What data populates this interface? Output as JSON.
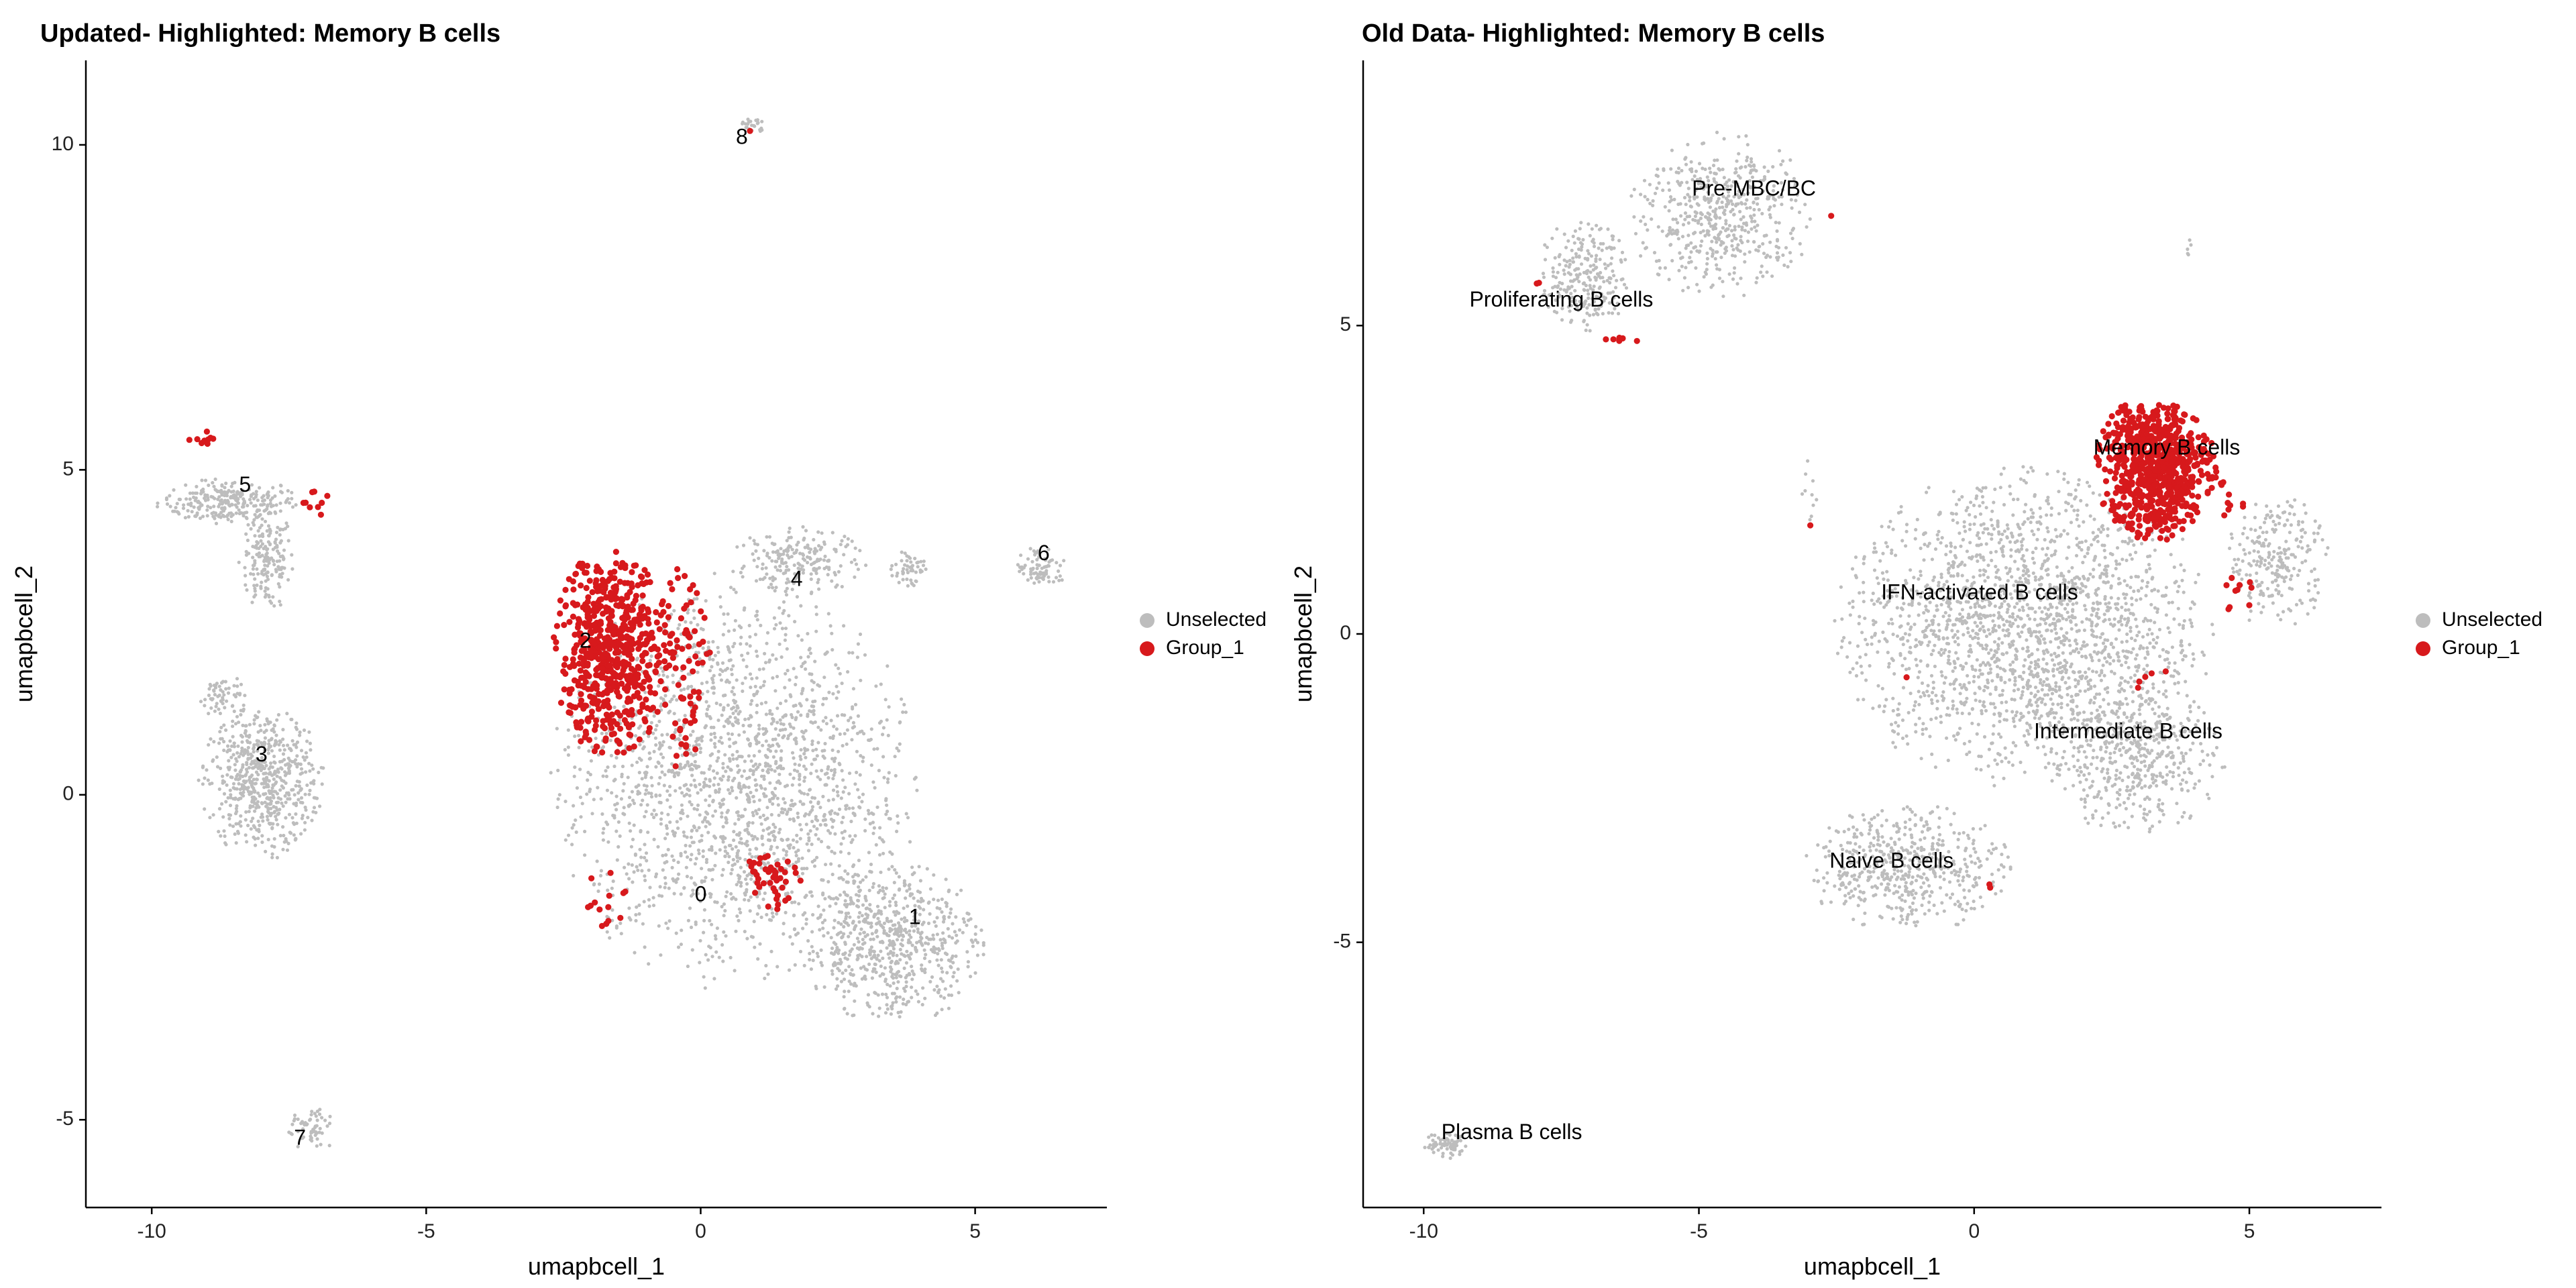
{
  "colors": {
    "unselected": "#bdbdbd",
    "highlight": "#d7191c",
    "axis": "#000000",
    "background": "#ffffff"
  },
  "chart_data": [
    {
      "type": "scatter",
      "title": "Updated- Highlighted: Memory B cells",
      "xlabel": "umapbcell_1",
      "ylabel": "umapbcell_2",
      "xlim": [
        -11.2,
        7.4
      ],
      "ylim": [
        -6.35,
        11.3
      ],
      "xticks": [
        -10,
        -5,
        0,
        5
      ],
      "yticks": [
        -5,
        0,
        5,
        10
      ],
      "grid": false,
      "legend": {
        "placement": "right",
        "entries": [
          {
            "label": "Unselected",
            "color_key": "unselected"
          },
          {
            "label": "Group_1",
            "color_key": "highlight"
          }
        ]
      },
      "cluster_labels": [
        {
          "text": "0",
          "x": 0.0,
          "y": -1.55
        },
        {
          "text": "1",
          "x": 3.9,
          "y": -1.9
        },
        {
          "text": "2",
          "x": -2.1,
          "y": 2.35
        },
        {
          "text": "3",
          "x": -8.0,
          "y": 0.6
        },
        {
          "text": "4",
          "x": 1.75,
          "y": 3.3
        },
        {
          "text": "5",
          "x": -8.3,
          "y": 4.75
        },
        {
          "text": "6",
          "x": 6.25,
          "y": 3.7
        },
        {
          "text": "7",
          "x": -7.3,
          "y": -5.3
        },
        {
          "text": "8",
          "x": 0.75,
          "y": 10.1
        }
      ],
      "unselected_clusters": [
        {
          "cx": -8.6,
          "cy": 4.5,
          "rx": 1.3,
          "ry": 0.35,
          "n": 260
        },
        {
          "cx": -7.9,
          "cy": 3.6,
          "rx": 0.5,
          "ry": 0.75,
          "n": 170
        },
        {
          "cx": -8.0,
          "cy": 0.2,
          "rx": 1.1,
          "ry": 1.15,
          "n": 620
        },
        {
          "cx": -8.7,
          "cy": 1.5,
          "rx": 0.45,
          "ry": 0.35,
          "n": 60
        },
        {
          "cx": 0.6,
          "cy": 0.2,
          "rx": 3.2,
          "ry": 3.1,
          "n": 1900
        },
        {
          "cx": 3.5,
          "cy": -2.3,
          "rx": 1.6,
          "ry": 1.2,
          "n": 650
        },
        {
          "cx": 1.8,
          "cy": 3.6,
          "rx": 1.2,
          "ry": 0.5,
          "n": 200
        },
        {
          "cx": 3.8,
          "cy": 3.5,
          "rx": 0.4,
          "ry": 0.3,
          "n": 50
        },
        {
          "cx": 6.2,
          "cy": 3.5,
          "rx": 0.45,
          "ry": 0.35,
          "n": 80
        },
        {
          "cx": -7.1,
          "cy": -5.15,
          "rx": 0.45,
          "ry": 0.35,
          "n": 60
        },
        {
          "cx": 0.95,
          "cy": 10.3,
          "rx": 0.2,
          "ry": 0.15,
          "n": 25
        }
      ],
      "highlight_clusters": [
        {
          "cx": -1.6,
          "cy": 2.2,
          "rx": 1.05,
          "ry": 1.55,
          "n": 620
        },
        {
          "cx": -0.3,
          "cy": 2.0,
          "rx": 0.5,
          "ry": 1.7,
          "n": 70
        },
        {
          "cx": 1.3,
          "cy": -1.25,
          "rx": 0.5,
          "ry": 0.5,
          "n": 45
        },
        {
          "cx": -1.8,
          "cy": -1.6,
          "rx": 0.5,
          "ry": 0.5,
          "n": 14
        },
        {
          "cx": -9.1,
          "cy": 5.5,
          "rx": 0.35,
          "ry": 0.12,
          "n": 9
        },
        {
          "cx": -7.1,
          "cy": 4.5,
          "rx": 0.4,
          "ry": 0.35,
          "n": 9
        },
        {
          "cx": 0.9,
          "cy": 10.2,
          "rx": 0.05,
          "ry": 0.05,
          "n": 1
        }
      ],
      "series": [
        {
          "name": "Unselected",
          "color_key": "unselected"
        },
        {
          "name": "Group_1",
          "color_key": "highlight"
        }
      ]
    },
    {
      "type": "scatter",
      "title": "Old Data- Highlighted: Memory B cells",
      "xlabel": "umapbcell_1",
      "ylabel": "umapbcell_2",
      "xlim": [
        -11.1,
        7.4
      ],
      "ylim": [
        -9.3,
        9.3
      ],
      "xticks": [
        -10,
        -5,
        0,
        5
      ],
      "yticks": [
        -5,
        0,
        5
      ],
      "grid": false,
      "legend": {
        "placement": "right",
        "entries": [
          {
            "label": "Unselected",
            "color_key": "unselected"
          },
          {
            "label": "Group_1",
            "color_key": "highlight"
          }
        ]
      },
      "cluster_labels": [
        {
          "text": "Pre-MBC/BC",
          "x": -4.0,
          "y": 7.2
        },
        {
          "text": "Proliferating B cells",
          "x": -7.5,
          "y": 5.4
        },
        {
          "text": "Memory B cells",
          "x": 3.5,
          "y": 3.0
        },
        {
          "text": "IFN-activated B cells",
          "x": 0.1,
          "y": 0.65
        },
        {
          "text": "Intermediate B cells",
          "x": 2.8,
          "y": -1.6
        },
        {
          "text": "Naive B cells",
          "x": -1.5,
          "y": -3.7
        },
        {
          "text": "Plasma B cells",
          "x": -8.4,
          "y": -8.1
        }
      ],
      "unselected_clusters": [
        {
          "cx": -4.6,
          "cy": 6.8,
          "rx": 1.6,
          "ry": 1.3,
          "n": 520
        },
        {
          "cx": -7.1,
          "cy": 5.8,
          "rx": 0.8,
          "ry": 0.9,
          "n": 240
        },
        {
          "cx": 0.9,
          "cy": 0.1,
          "rx": 3.3,
          "ry": 2.5,
          "n": 2000
        },
        {
          "cx": -1.2,
          "cy": -3.8,
          "rx": 1.8,
          "ry": 1.0,
          "n": 520
        },
        {
          "cx": 2.9,
          "cy": -2.0,
          "rx": 1.6,
          "ry": 1.2,
          "n": 460
        },
        {
          "cx": 5.5,
          "cy": 1.2,
          "rx": 0.9,
          "ry": 1.1,
          "n": 240
        },
        {
          "cx": -3.0,
          "cy": 2.4,
          "rx": 0.15,
          "ry": 0.6,
          "n": 10
        },
        {
          "cx": -9.6,
          "cy": -8.3,
          "rx": 0.45,
          "ry": 0.2,
          "n": 70
        },
        {
          "cx": 3.9,
          "cy": 6.3,
          "rx": 0.05,
          "ry": 0.3,
          "n": 5
        }
      ],
      "highlight_clusters": [
        {
          "cx": 3.3,
          "cy": 2.7,
          "rx": 1.05,
          "ry": 1.15,
          "n": 720
        },
        {
          "cx": 4.6,
          "cy": 2.2,
          "rx": 0.35,
          "ry": 0.45,
          "n": 12
        },
        {
          "cx": 4.8,
          "cy": 0.7,
          "rx": 0.25,
          "ry": 0.4,
          "n": 10
        },
        {
          "cx": 3.2,
          "cy": -0.7,
          "rx": 0.4,
          "ry": 0.3,
          "n": 5
        },
        {
          "cx": -6.4,
          "cy": 4.8,
          "rx": 0.3,
          "ry": 0.1,
          "n": 6
        },
        {
          "cx": -7.9,
          "cy": 5.7,
          "rx": 0.05,
          "ry": 0.05,
          "n": 2
        },
        {
          "cx": -2.6,
          "cy": 6.8,
          "rx": 0.05,
          "ry": 0.05,
          "n": 1
        },
        {
          "cx": -3.0,
          "cy": 1.8,
          "rx": 0.05,
          "ry": 0.05,
          "n": 1
        },
        {
          "cx": -1.2,
          "cy": -0.7,
          "rx": 0.05,
          "ry": 0.05,
          "n": 1
        },
        {
          "cx": 0.3,
          "cy": -4.1,
          "rx": 0.1,
          "ry": 0.1,
          "n": 2
        }
      ],
      "series": [
        {
          "name": "Unselected",
          "color_key": "unselected"
        },
        {
          "name": "Group_1",
          "color_key": "highlight"
        }
      ]
    }
  ]
}
